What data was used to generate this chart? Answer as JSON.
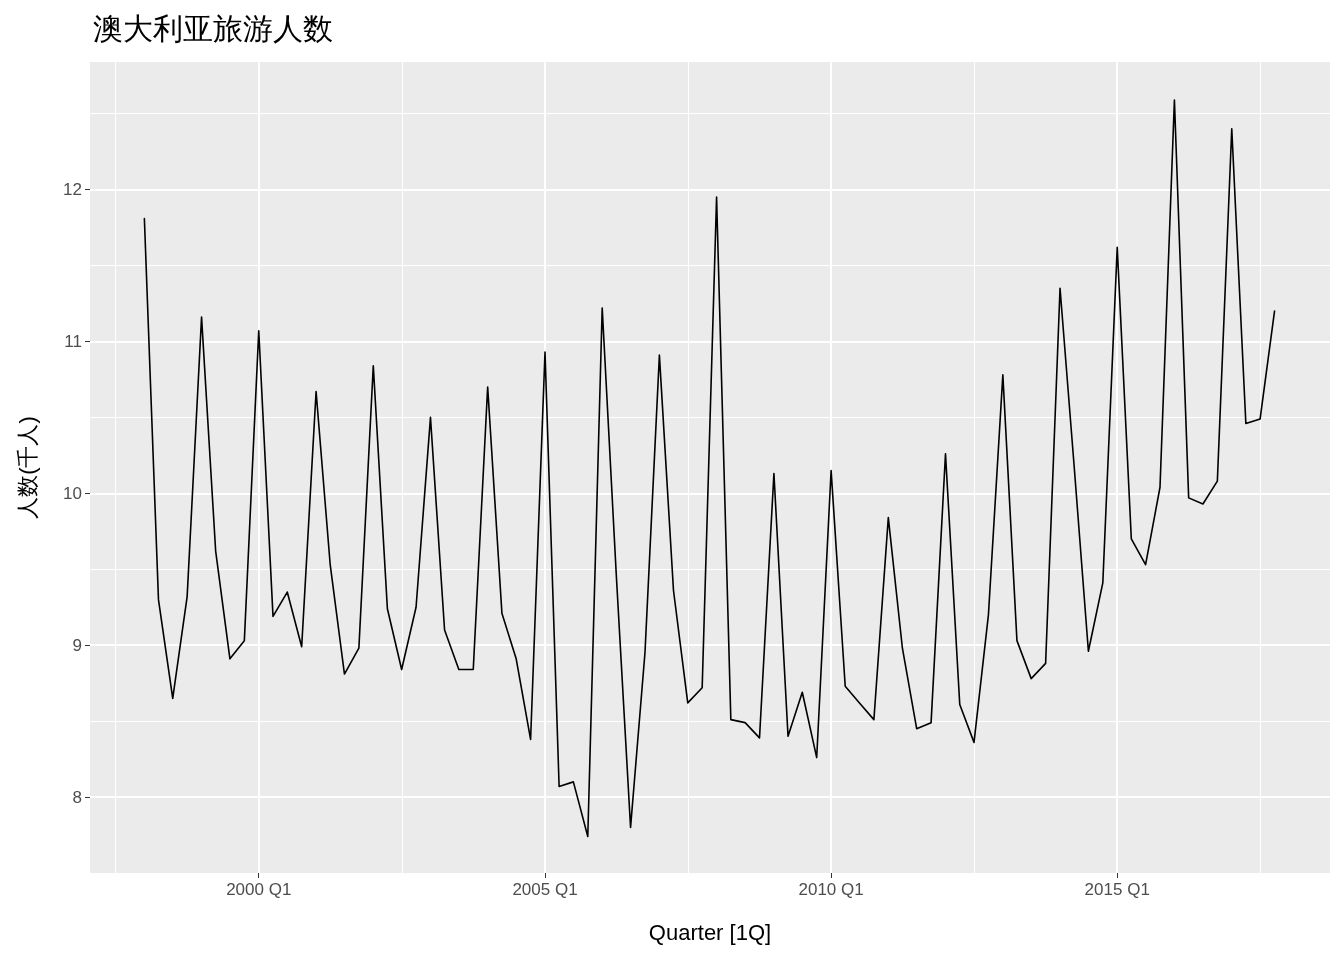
{
  "chart_data": {
    "type": "line",
    "title": "澳大利亚旅游人数",
    "xlabel": "Quarter [1Q]",
    "ylabel": "人数(千人)",
    "x": [
      "1998-01",
      "1998-04",
      "1998-07",
      "1998-10",
      "1999-01",
      "1999-04",
      "1999-07",
      "1999-10",
      "2000-01",
      "2000-04",
      "2000-07",
      "2000-10",
      "2001-01",
      "2001-04",
      "2001-07",
      "2001-10",
      "2002-01",
      "2002-04",
      "2002-07",
      "2002-10",
      "2003-01",
      "2003-04",
      "2003-07",
      "2003-10",
      "2004-01",
      "2004-04",
      "2004-07",
      "2004-10",
      "2005-01",
      "2005-04",
      "2005-07",
      "2005-10",
      "2006-01",
      "2006-04",
      "2006-07",
      "2006-10",
      "2007-01",
      "2007-04",
      "2007-07",
      "2007-10",
      "2008-01",
      "2008-04",
      "2008-07",
      "2008-10",
      "2009-01",
      "2009-04",
      "2009-07",
      "2009-10",
      "2010-01",
      "2010-04",
      "2010-07",
      "2010-10",
      "2011-01",
      "2011-04",
      "2011-07",
      "2011-10",
      "2012-01",
      "2012-04",
      "2012-07",
      "2012-10",
      "2013-01",
      "2013-04",
      "2013-07",
      "2013-10",
      "2014-01",
      "2014-04",
      "2014-07",
      "2014-10",
      "2015-01",
      "2015-04",
      "2015-07",
      "2015-10",
      "2016-01",
      "2016-04",
      "2016-07",
      "2016-10",
      "2017-01",
      "2017-04",
      "2017-07",
      "2017-10"
    ],
    "series": [
      {
        "color": "#000000",
        "values": [
          11.81,
          9.3,
          8.65,
          9.32,
          11.16,
          9.62,
          8.91,
          9.03,
          11.07,
          9.19,
          9.35,
          8.99,
          10.67,
          9.53,
          8.81,
          8.98,
          10.84,
          9.24,
          8.84,
          9.25,
          10.5,
          9.1,
          8.84,
          8.84,
          10.7,
          9.21,
          8.91,
          8.38,
          10.93,
          8.07,
          8.1,
          7.74,
          11.22,
          9.46,
          7.8,
          8.95,
          10.91,
          9.36,
          8.62,
          8.72,
          11.95,
          8.51,
          8.49,
          8.39,
          10.13,
          8.4,
          8.69,
          8.26,
          10.15,
          8.73,
          8.62,
          8.51,
          9.84,
          8.98,
          8.45,
          8.49,
          10.26,
          8.61,
          8.36,
          9.2,
          10.78,
          9.03,
          8.78,
          8.88,
          11.35,
          10.18,
          8.96,
          9.41,
          11.62,
          9.7,
          9.53,
          10.04,
          12.59,
          9.97,
          9.93,
          10.08,
          12.4,
          10.46,
          10.49,
          11.2
        ]
      }
    ],
    "xlim": [
      "1997-01-19",
      "2018-09-20"
    ],
    "ylim": [
      7.5,
      12.84
    ],
    "xticks": [
      {
        "value": "2000-01",
        "label": "2000 Q1"
      },
      {
        "value": "2005-01",
        "label": "2005 Q1"
      },
      {
        "value": "2010-01",
        "label": "2010 Q1"
      },
      {
        "value": "2015-01",
        "label": "2015 Q1"
      }
    ],
    "yticks": [
      8,
      9,
      10,
      11,
      12
    ],
    "grid": true,
    "marker": "none",
    "line_style": "solid"
  }
}
